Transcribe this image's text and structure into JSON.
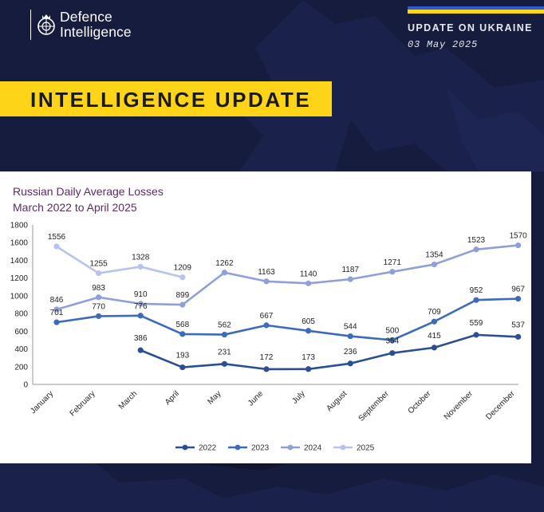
{
  "header": {
    "logo_line1": "Defence",
    "logo_line2": "Intelligence",
    "update_title": "UPDATE ON UKRAINE",
    "update_date": "03 May 2025",
    "banner": "INTELLIGENCE UPDATE"
  },
  "colors": {
    "background": "#161c3e",
    "banner": "#fdd417",
    "flag_blue": "#2d5bd6",
    "flag_yellow": "#f9d616",
    "title": "#5a2a6a",
    "series": [
      "#2a4f92",
      "#3c6bbb",
      "#8f9fd8",
      "#b8c3ec"
    ]
  },
  "chart_data": {
    "type": "line",
    "title": "Russian Daily Average Losses",
    "subtitle": "March 2022 to April 2025",
    "xlabel": "",
    "ylabel": "",
    "ylim": [
      0,
      1800
    ],
    "yticks": [
      0,
      200,
      400,
      600,
      800,
      1000,
      1200,
      1400,
      1600,
      1800
    ],
    "grid": false,
    "legend": "bottom",
    "categories": [
      "January",
      "February",
      "March",
      "April",
      "May",
      "June",
      "July",
      "August",
      "September",
      "October",
      "November",
      "December"
    ],
    "series": [
      {
        "name": "2022",
        "values": [
          null,
          null,
          386,
          193,
          231,
          172,
          173,
          236,
          354,
          415,
          559,
          537
        ]
      },
      {
        "name": "2023",
        "values": [
          701,
          770,
          776,
          568,
          562,
          667,
          605,
          544,
          500,
          709,
          952,
          967
        ]
      },
      {
        "name": "2024",
        "values": [
          846,
          983,
          910,
          899,
          1262,
          1163,
          1140,
          1187,
          1271,
          1354,
          1523,
          1570
        ]
      },
      {
        "name": "2025",
        "values": [
          1556,
          1255,
          1328,
          1209,
          null,
          null,
          null,
          null,
          null,
          null,
          null,
          null
        ]
      }
    ]
  }
}
